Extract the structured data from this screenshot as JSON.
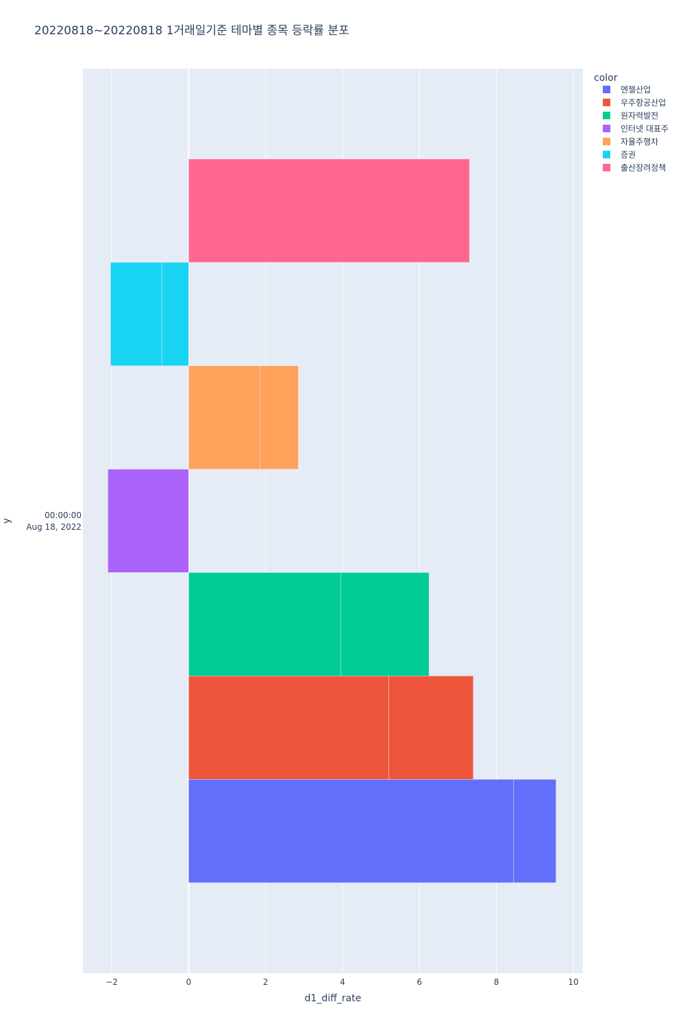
{
  "chart_data": {
    "type": "bar",
    "orientation": "horizontal",
    "barmode": "stack",
    "title": "20220818~20220818 1거래일기준 테마별 종목 등락률 분포",
    "xlabel": "d1_diff_rate",
    "ylabel": "y",
    "y_tick": [
      "00:00:00",
      "Aug 18, 2022"
    ],
    "xlim": [
      -2.75,
      10.25
    ],
    "x_ticks": [
      -2,
      0,
      2,
      4,
      6,
      8,
      10
    ],
    "x_tick_labels": [
      "−2",
      "0",
      "2",
      "4",
      "6",
      "8",
      "10"
    ],
    "grid": true,
    "legend_title": "color",
    "legend_position": "top-right",
    "series": [
      {
        "name": "엔젤산업",
        "color": "#636efa",
        "segments": [
          8.45,
          1.1
        ]
      },
      {
        "name": "우주항공산업",
        "color": "#ef553b",
        "segments": [
          5.2,
          2.2
        ]
      },
      {
        "name": "원자력발전",
        "color": "#00cc96",
        "segments": [
          3.95,
          2.3
        ]
      },
      {
        "name": "인터넷 대표주",
        "color": "#ab63fa",
        "segments": [
          -2.1
        ]
      },
      {
        "name": "자율주행차",
        "color": "#ffa15a",
        "segments": [
          1.85,
          1.0
        ]
      },
      {
        "name": "증권",
        "color": "#19d3f3",
        "segments": [
          -0.7,
          -1.33
        ]
      },
      {
        "name": "출산장려정책",
        "color": "#ff6692",
        "segments": [
          7.3
        ]
      }
    ]
  }
}
